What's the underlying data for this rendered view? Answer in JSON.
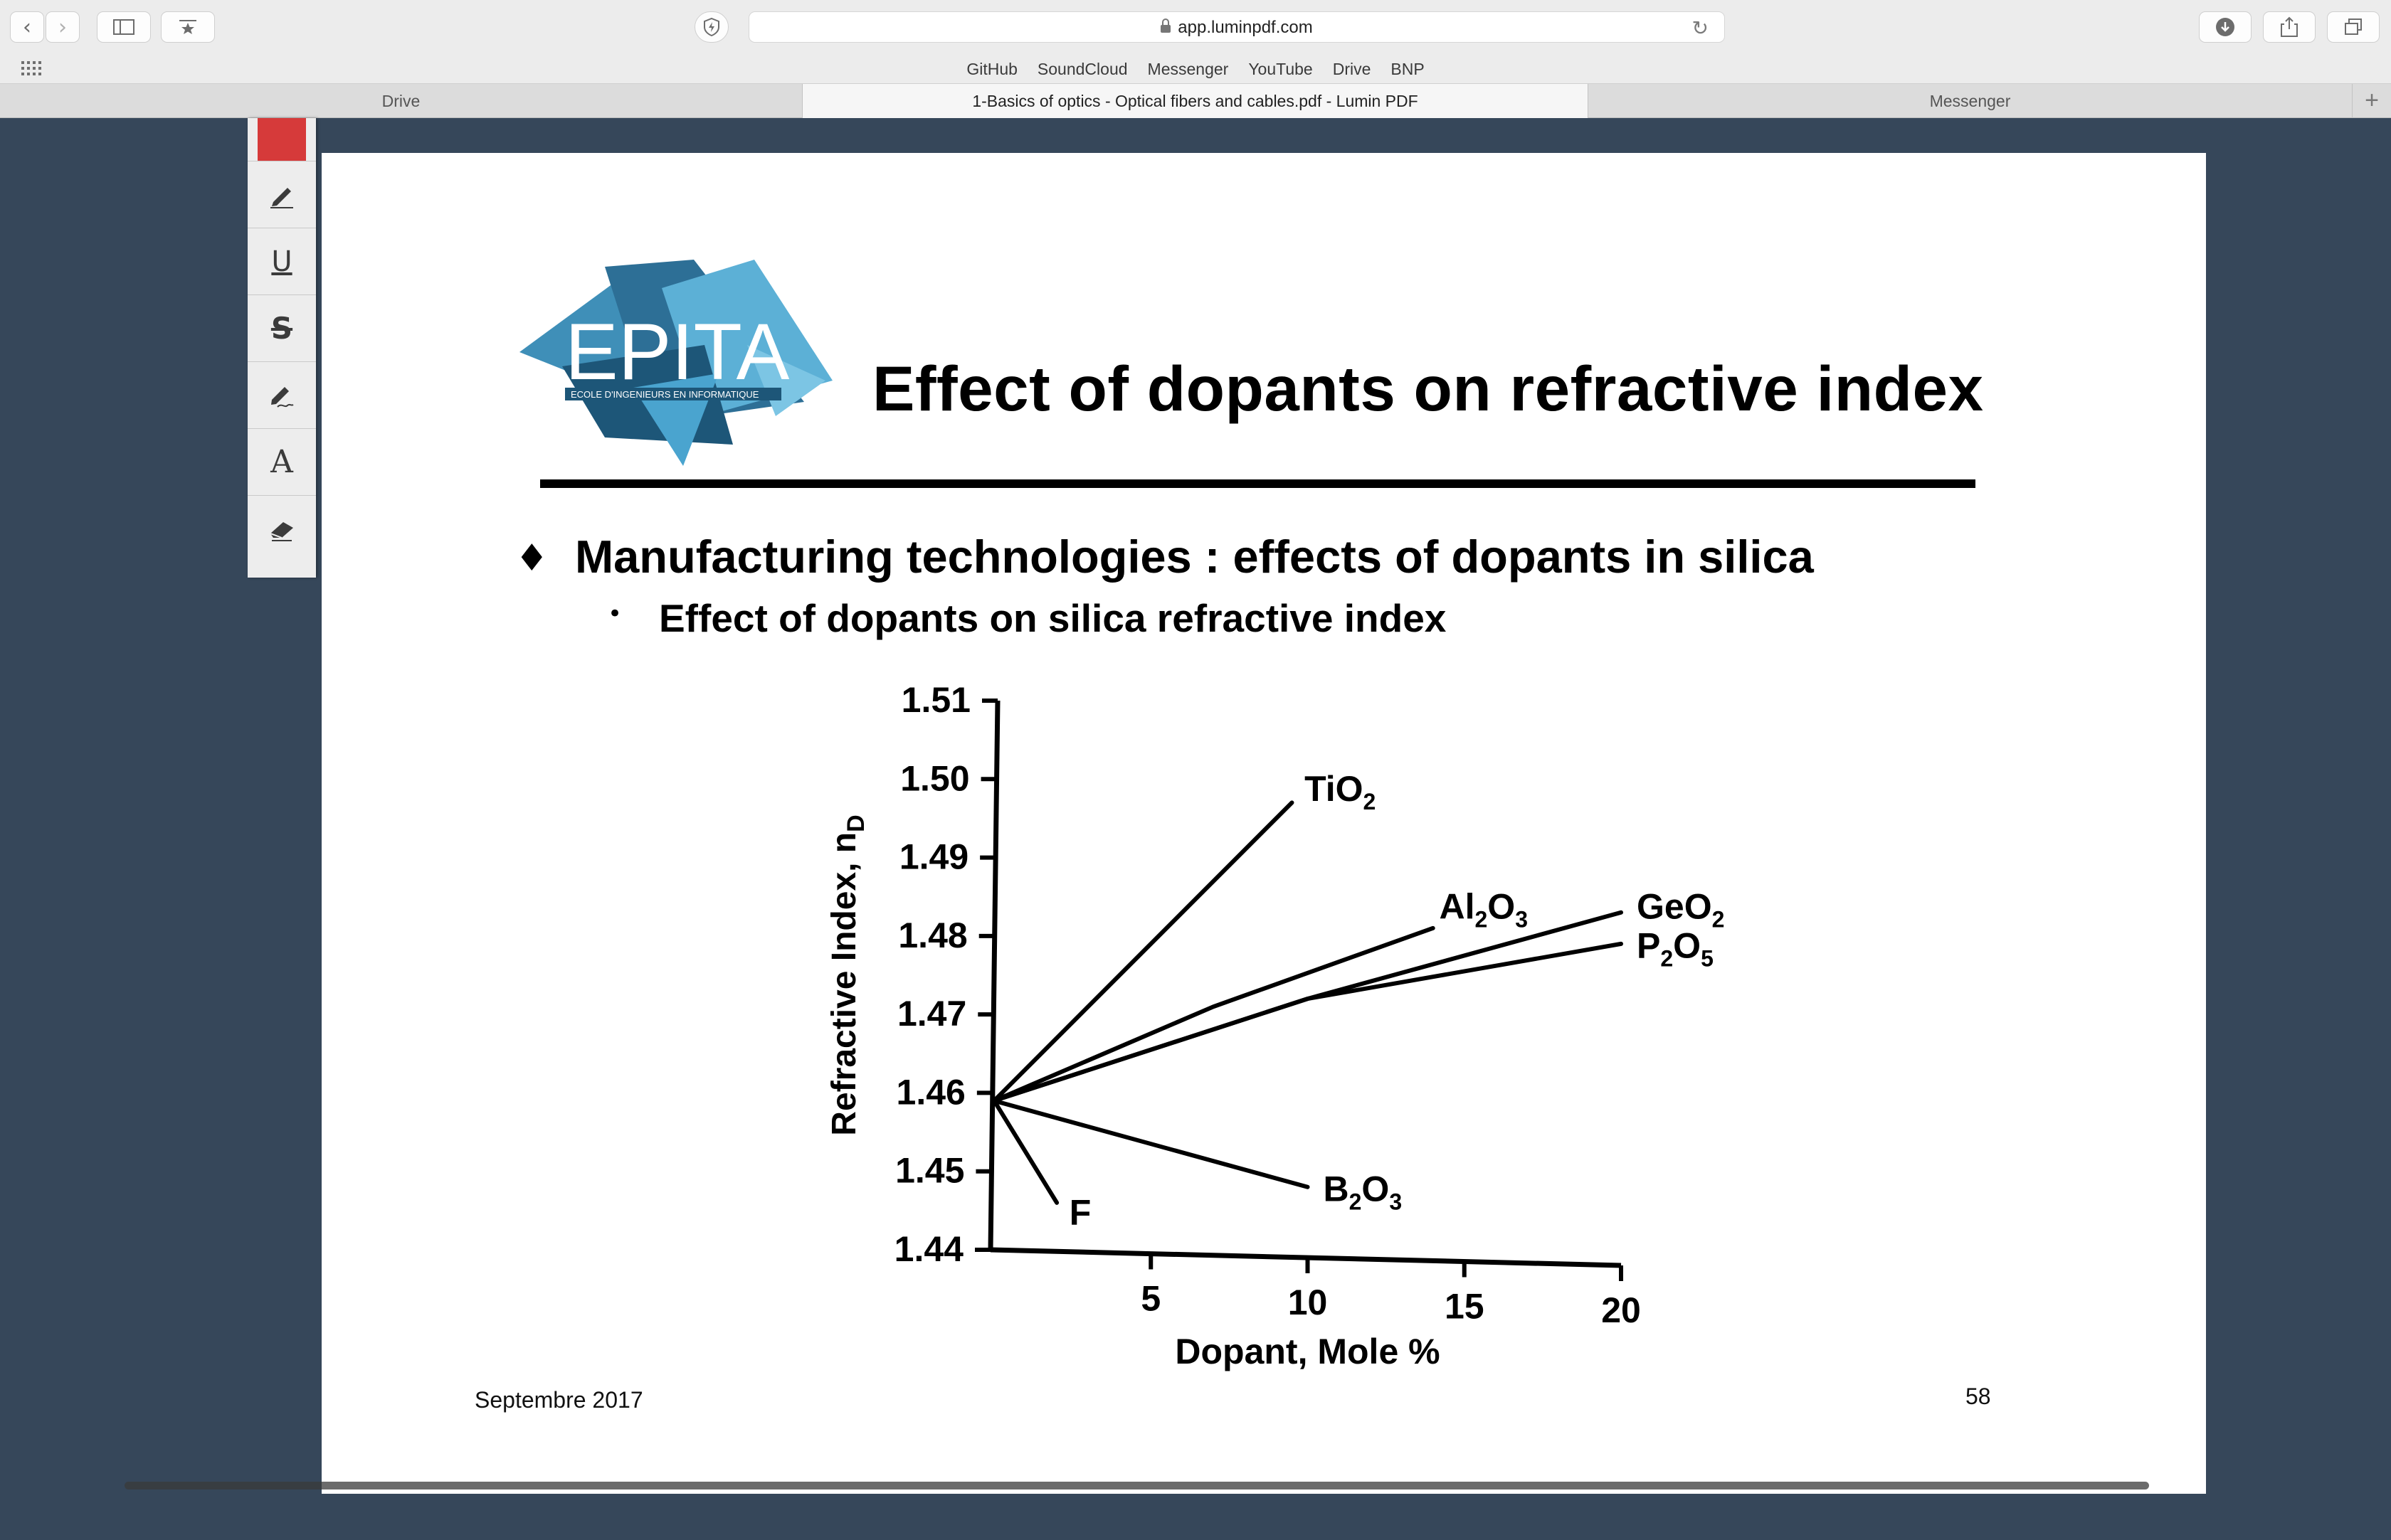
{
  "browser": {
    "url": "app.luminpdf.com",
    "favorites": [
      "GitHub",
      "SoundCloud",
      "Messenger",
      "YouTube",
      "Drive",
      "BNP"
    ],
    "tabs": [
      {
        "label": "Drive"
      },
      {
        "label": "1-Basics of optics - Optical fibers and cables.pdf - Lumin PDF",
        "active": true
      },
      {
        "label": "Messenger"
      }
    ],
    "new_tab_label": "+"
  },
  "annotation_toolbar": {
    "selected_color": "#d63a3a",
    "tools": [
      "highlight-pen-icon",
      "underline-icon",
      "strikethrough-icon",
      "freehand-pen-icon",
      "text-tool-icon",
      "eraser-icon"
    ],
    "underline_glyph": "U",
    "strike_glyph": "S",
    "text_glyph": "A"
  },
  "slide": {
    "logo_text": "EPITA",
    "logo_subtitle": "ECOLE D'INGENIEURS EN INFORMATIQUE",
    "title": "Effect of dopants on refractive index",
    "bullet1_mark": "♦",
    "bullet1": "Manufacturing technologies : effects of dopants in silica",
    "bullet2_mark": "•",
    "bullet2": "Effect of dopants on silica refractive index",
    "footer_left": "Septembre 2017",
    "page_number": "58"
  },
  "chart_data": {
    "type": "line",
    "xlabel": "Dopant, Mole %",
    "ylabel": "Refractive Index, n_D",
    "xlim": [
      0,
      20
    ],
    "ylim": [
      1.44,
      1.51
    ],
    "x_ticks": [
      "5",
      "10",
      "15",
      "20"
    ],
    "y_ticks": [
      "1.44",
      "1.45",
      "1.46",
      "1.47",
      "1.48",
      "1.49",
      "1.50",
      "1.51"
    ],
    "series": [
      {
        "name": "TiO2",
        "sub": "2",
        "base": "TiO",
        "points": [
          [
            0,
            1.459
          ],
          [
            9.5,
            1.497
          ]
        ]
      },
      {
        "name": "Al2O3",
        "base": "Al",
        "mid": "O",
        "sub1": "2",
        "sub2": "3",
        "points": [
          [
            0,
            1.459
          ],
          [
            7,
            1.471
          ],
          [
            14,
            1.481
          ]
        ]
      },
      {
        "name": "GeO2",
        "base": "GeO",
        "sub": "2",
        "points": [
          [
            0,
            1.459
          ],
          [
            10,
            1.472
          ],
          [
            20,
            1.483
          ]
        ]
      },
      {
        "name": "P2O5",
        "base": "P",
        "mid": "O",
        "sub1": "2",
        "sub2": "5",
        "points": [
          [
            0,
            1.459
          ],
          [
            10,
            1.472
          ],
          [
            20,
            1.479
          ]
        ]
      },
      {
        "name": "B2O3",
        "base": "B",
        "mid": "O",
        "sub1": "2",
        "sub2": "3",
        "points": [
          [
            0,
            1.459
          ],
          [
            10,
            1.448
          ]
        ]
      },
      {
        "name": "F",
        "base": "F",
        "points": [
          [
            0,
            1.459
          ],
          [
            2,
            1.446
          ]
        ]
      }
    ]
  }
}
